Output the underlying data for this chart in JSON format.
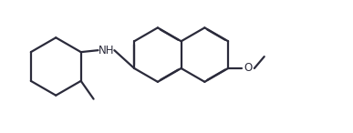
{
  "background_color": "#ffffff",
  "line_color": "#2b2b3b",
  "line_width": 1.6,
  "font_size": 8.5,
  "nh_label": "NH",
  "o_label": "O",
  "figsize": [
    3.87,
    1.46
  ],
  "dpi": 100
}
